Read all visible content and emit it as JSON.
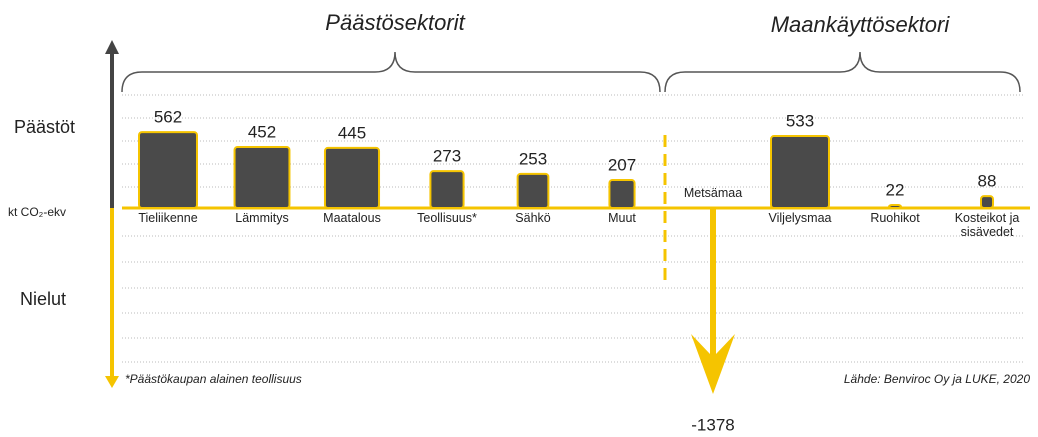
{
  "chart_data": {
    "type": "pictogram",
    "series": [
      {
        "name": "Päästösektorit",
        "categories": [
          "Tieliikenne",
          "Lämmitys",
          "Maatalous",
          "Teollisuus*",
          "Sähkö",
          "Muut"
        ],
        "values": [
          562,
          452,
          445,
          273,
          253,
          207
        ],
        "colors": [
          "#4a4a4a",
          "#4a4a4a",
          "#4a4a4a",
          "#4a4a4a",
          "#4a4a4a",
          "#4a4a4a"
        ]
      },
      {
        "name": "Maankäyttösektori",
        "categories": [
          "Metsämaa",
          "Viljelysmaa",
          "Ruohikot",
          "Kosteikot ja sisävedet"
        ],
        "values": [
          -1378,
          533,
          22,
          88
        ],
        "colors": [
          "#f5c400",
          "#4a4a4a",
          "#4a4a4a",
          "#4a4a4a"
        ]
      }
    ],
    "accent": "#f5c400",
    "axis_labels": {
      "top": "Päästöt",
      "middle": "kt CO₂-ekv",
      "bottom": "Nielut"
    },
    "footnote": "*Päästökaupan alainen teollisuus",
    "source": "Lähde: Benviroc Oy ja LUKE, 2020"
  }
}
